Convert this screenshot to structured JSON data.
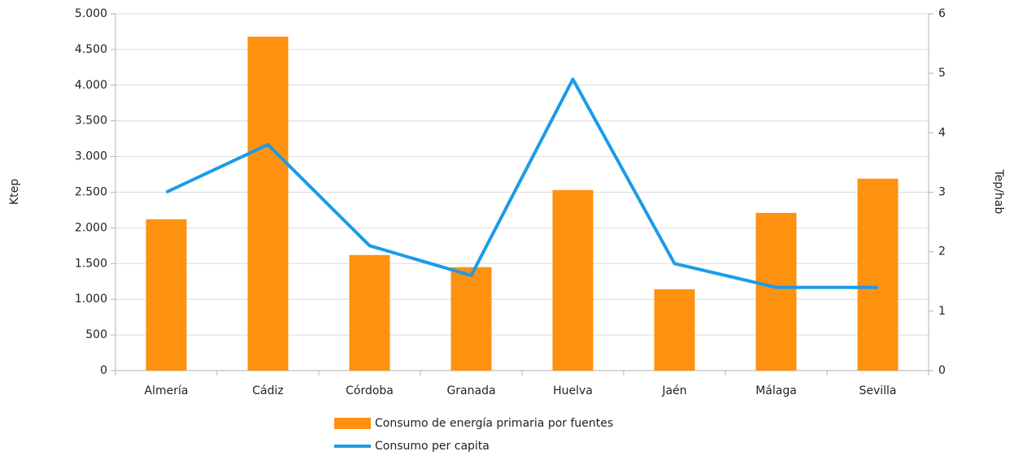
{
  "chart_data": {
    "type": "bar",
    "categories": [
      "Almería",
      "Cádiz",
      "Córdoba",
      "Granada",
      "Huelva",
      "Jaén",
      "Málaga",
      "Sevilla"
    ],
    "series": [
      {
        "name": "Consumo de energía primaria por fuentes",
        "type": "bar",
        "color": "#ff9111",
        "values": [
          2120,
          4680,
          1620,
          1450,
          2530,
          1140,
          2210,
          2690
        ]
      },
      {
        "name": "Consumo per capita",
        "type": "line",
        "axis": "y2",
        "color": "#1b9bea",
        "values": [
          3.0,
          3.8,
          2.1,
          1.6,
          4.9,
          1.8,
          1.4,
          1.4
        ]
      }
    ],
    "ylabel": "Ktep",
    "y2label": "Tep/hab",
    "ylim": [
      0,
      5000
    ],
    "yticks": [
      0,
      500,
      {
        "value": 1000,
        "label": "1.000"
      },
      {
        "value": 1500,
        "label": "1.500"
      },
      {
        "value": 2000,
        "label": "2.000"
      },
      {
        "value": 2500,
        "label": "2.500"
      },
      {
        "value": 3000,
        "label": "3.000"
      },
      {
        "value": 3500,
        "label": "3.500"
      },
      {
        "value": 4000,
        "label": "4.000"
      },
      {
        "value": 4500,
        "label": "4.500"
      },
      {
        "value": 5000,
        "label": "5.000"
      }
    ],
    "y2lim": [
      0,
      6
    ],
    "y2ticks": [
      0,
      1,
      2,
      3,
      4,
      5,
      6
    ],
    "grid": true,
    "legend": "bottom"
  }
}
